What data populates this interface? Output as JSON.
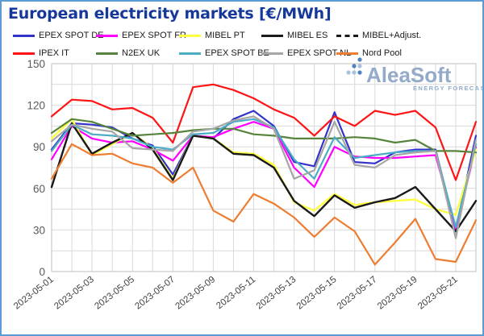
{
  "title": "European electricity markets [€/MWh]",
  "watermark": {
    "brand": "AleaSoft",
    "tagline": "ENERGY FORECASTING",
    "text_color": "#93abc9",
    "dot_colors": [
      "#a9c0de",
      "#4f81bd"
    ]
  },
  "frame_border_color": "#5b9bd5",
  "chart_data": {
    "type": "line",
    "x": [
      "2023-05-01",
      "2023-05-02",
      "2023-05-03",
      "2023-05-04",
      "2023-05-05",
      "2023-05-06",
      "2023-05-07",
      "2023-05-08",
      "2023-05-09",
      "2023-05-10",
      "2023-05-11",
      "2023-05-12",
      "2023-05-13",
      "2023-05-14",
      "2023-05-15",
      "2023-05-16",
      "2023-05-17",
      "2023-05-18",
      "2023-05-19",
      "2023-05-20",
      "2023-05-21",
      "2023-05-22"
    ],
    "x_tick_labels": [
      "2023-05-01",
      "2023-05-03",
      "2023-05-05",
      "2023-05-07",
      "2023-05-09",
      "2023-05-11",
      "2023-05-13",
      "2023-05-15",
      "2023-05-17",
      "2023-05-19",
      "2023-05-21"
    ],
    "x_tick_every": 2,
    "ylim": [
      0,
      150
    ],
    "y_ticks": [
      0,
      30,
      60,
      90,
      120,
      150
    ],
    "y_minor_step": 15,
    "grid": true,
    "legend_position": "top",
    "series": [
      {
        "name": "EPEX SPOT DE",
        "color": "#3333cc",
        "style": "solid",
        "values": [
          88,
          107,
          106,
          104,
          96,
          91,
          70,
          98,
          96,
          110,
          116,
          105,
          79,
          76,
          115,
          79,
          78,
          86,
          88,
          88,
          30,
          98
        ]
      },
      {
        "name": "EPEX SPOT FR",
        "color": "#ff00ff",
        "style": "solid",
        "values": [
          81,
          105,
          96,
          93,
          94,
          88,
          80,
          98,
          97,
          103,
          108,
          103,
          75,
          61,
          90,
          83,
          82,
          82,
          83,
          84,
          31,
          90
        ]
      },
      {
        "name": "MIBEL PT",
        "color": "#ffff42",
        "style": "solid",
        "values": [
          96,
          110,
          84,
          92,
          100,
          89,
          67,
          98,
          96,
          86,
          85,
          77,
          50,
          44,
          56,
          48,
          50,
          51,
          52,
          45,
          41,
          88
        ]
      },
      {
        "name": "MIBEL ES",
        "color": "#1a1a1a",
        "style": "solid",
        "values": [
          61,
          107,
          85,
          93,
          100,
          88,
          66,
          98,
          96,
          85,
          84,
          75,
          51,
          40,
          55,
          46,
          50,
          53,
          61,
          45,
          29,
          51
        ]
      },
      {
        "name": "MIBEL+Adjust.",
        "color": "#1a1a1a",
        "style": "dashed",
        "values": [
          61,
          107,
          85,
          93,
          100,
          88,
          66,
          98,
          96,
          85,
          84,
          75,
          51,
          40,
          55,
          46,
          50,
          53,
          61,
          45,
          29,
          51
        ]
      },
      {
        "name": "IPEX IT",
        "color": "#fe1414",
        "style": "solid",
        "values": [
          112,
          124,
          123,
          117,
          118,
          111,
          93,
          133,
          135,
          131,
          125,
          117,
          111,
          98,
          112,
          105,
          116,
          113,
          116,
          104,
          66,
          108
        ]
      },
      {
        "name": "N2EX UK",
        "color": "#56843c",
        "style": "solid",
        "values": [
          100,
          110,
          108,
          103,
          98,
          99,
          100,
          102,
          103,
          103,
          99,
          98,
          96,
          96,
          96,
          97,
          96,
          93,
          95,
          87,
          87,
          86
        ]
      },
      {
        "name": "EPEX SPOT BE",
        "color": "#4bacc6",
        "style": "solid",
        "values": [
          87,
          106,
          99,
          98,
          96,
          90,
          88,
          99,
          100,
          108,
          110,
          104,
          81,
          67,
          97,
          82,
          84,
          86,
          87,
          87,
          32,
          92
        ]
      },
      {
        "name": "EPEX SPOT NL",
        "color": "#a6a6a6",
        "style": "solid",
        "values": [
          94,
          106,
          103,
          101,
          89,
          88,
          87,
          101,
          103,
          109,
          112,
          103,
          67,
          73,
          108,
          77,
          75,
          84,
          86,
          87,
          24,
          95
        ]
      },
      {
        "name": "Nord Pool",
        "color": "#ed7d31",
        "style": "solid",
        "values": [
          67,
          92,
          84,
          85,
          78,
          75,
          64,
          75,
          44,
          36,
          56,
          49,
          39,
          25,
          39,
          29,
          5,
          21,
          38,
          9,
          7,
          37
        ]
      }
    ]
  }
}
